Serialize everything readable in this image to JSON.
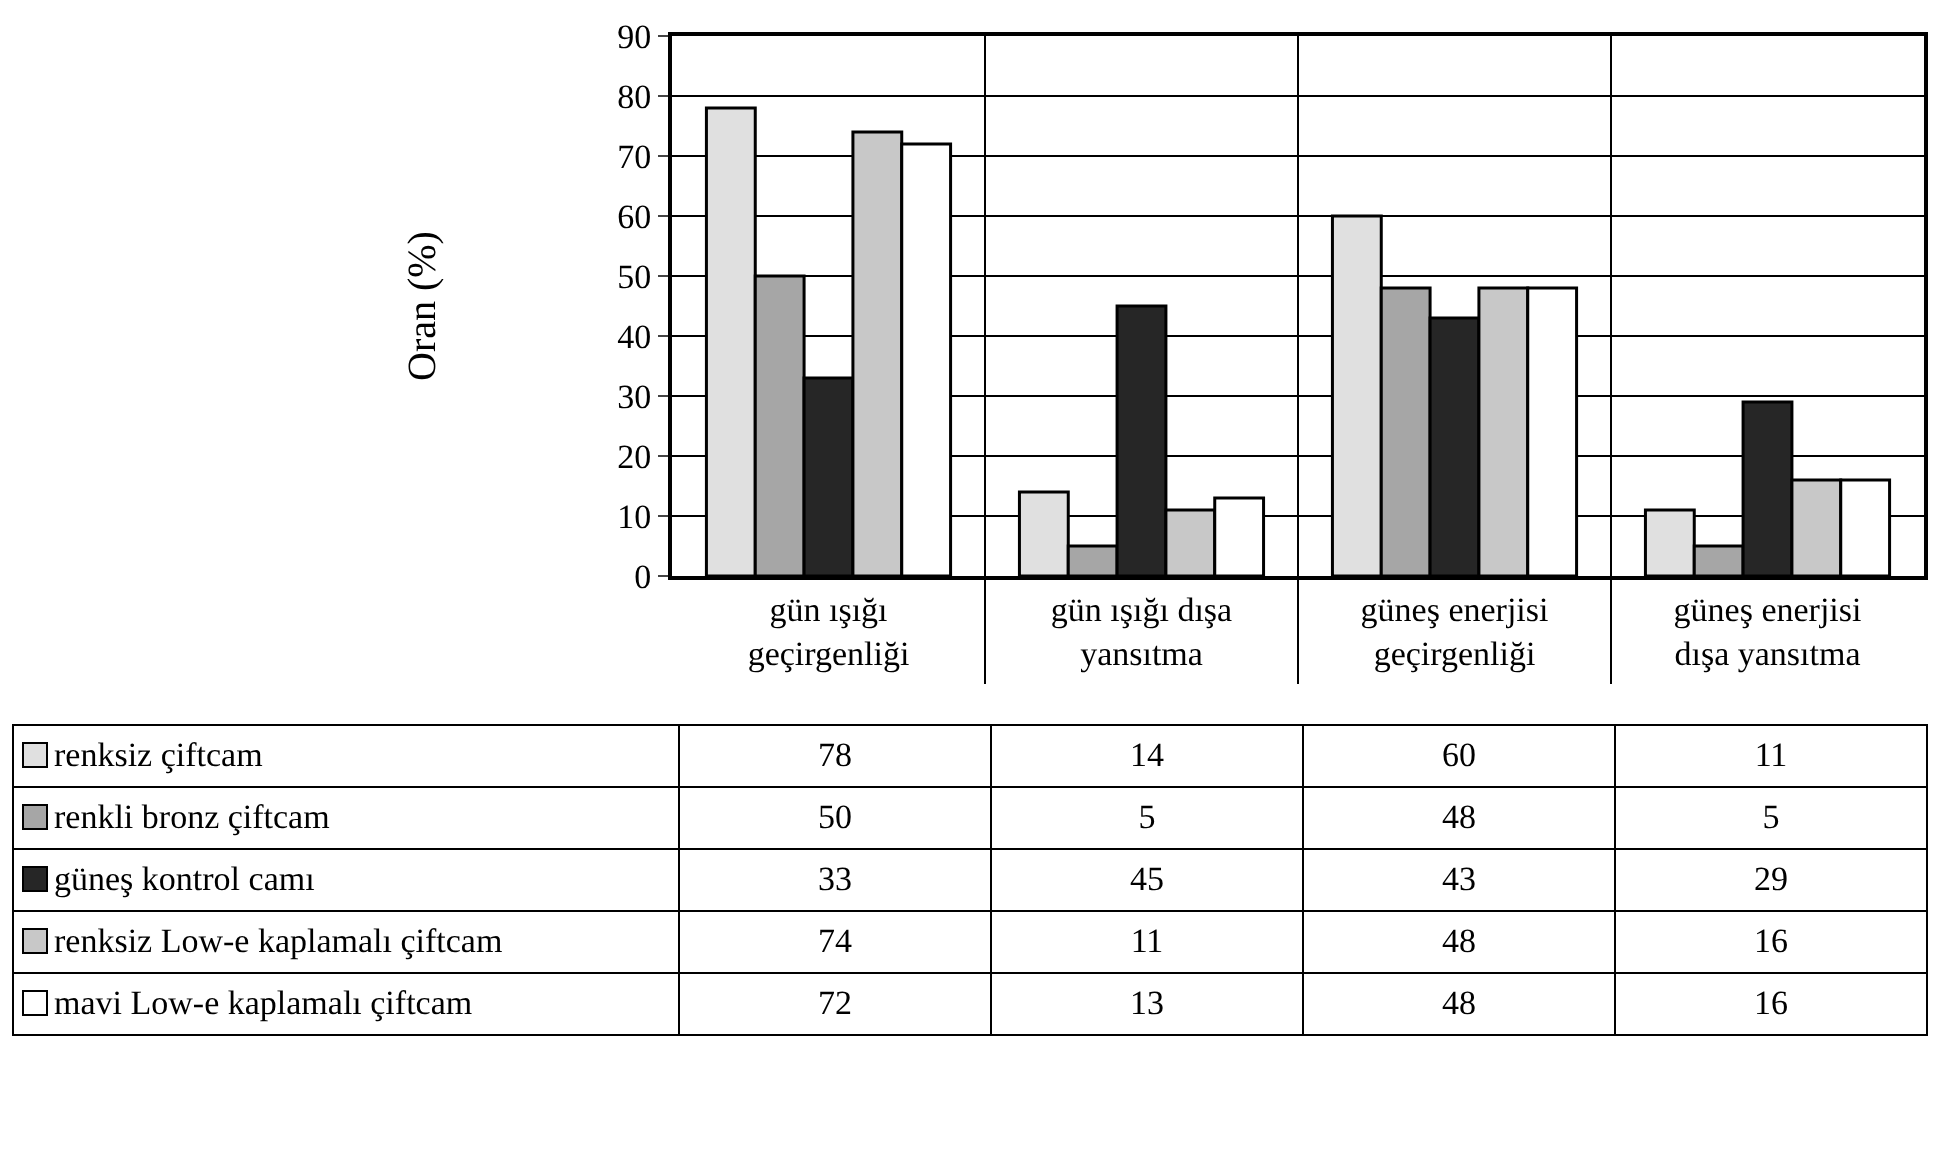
{
  "chart_data": {
    "type": "bar",
    "ylabel": "Oran (%)",
    "categories": [
      "gün ışığı geçirgenliği",
      "gün ışığı dışa yansıtma",
      "güneş enerjisi geçirgenliği",
      "güneş enerjisi dışa yansıtma"
    ],
    "series": [
      {
        "name": "renksiz çiftcam",
        "color": "#e0e0e0",
        "values": [
          78,
          14,
          60,
          11
        ]
      },
      {
        "name": "renkli bronz çiftcam",
        "color": "#a6a6a6",
        "values": [
          50,
          5,
          48,
          5
        ]
      },
      {
        "name": "güneş kontrol camı",
        "color": "#262626",
        "values": [
          33,
          45,
          43,
          29
        ]
      },
      {
        "name": "renksiz Low-e kaplamalı çiftcam",
        "color": "#c8c8c8",
        "values": [
          74,
          11,
          48,
          16
        ]
      },
      {
        "name": "mavi Low-e kaplamalı çiftcam",
        "color": "#ffffff",
        "values": [
          72,
          13,
          48,
          16
        ]
      }
    ],
    "ylim": [
      0,
      90
    ],
    "yticks": [
      0,
      10,
      20,
      30,
      40,
      50,
      60,
      70,
      80,
      90
    ],
    "grid": "y",
    "legend": "bottom",
    "data_labels": true
  }
}
